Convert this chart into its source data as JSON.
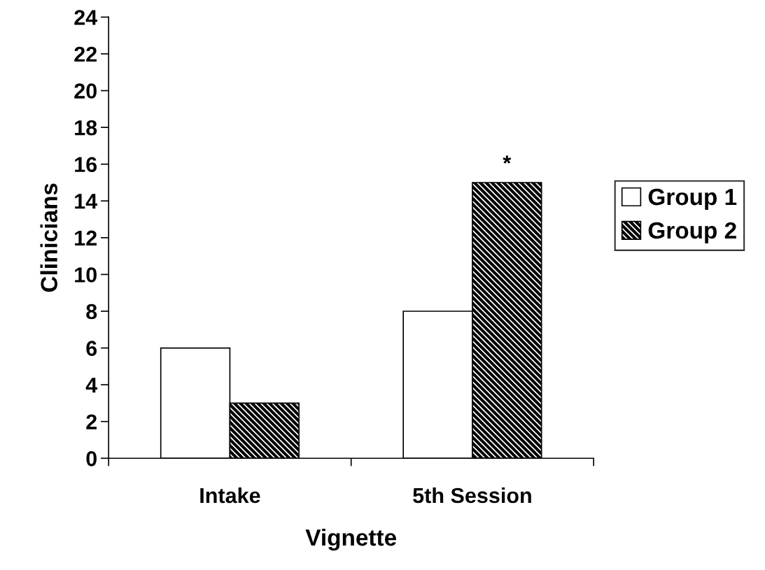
{
  "chart_data": {
    "type": "bar",
    "xlabel": "Vignette",
    "ylabel": "Clinicians",
    "categories": [
      "Intake",
      "5th Session"
    ],
    "series": [
      {
        "name": "Group 1",
        "color": "#ffffff",
        "values": [
          6,
          8
        ]
      },
      {
        "name": "Group 2",
        "color": "#000000",
        "values": [
          3,
          15
        ]
      }
    ],
    "ylim": [
      0,
      24
    ],
    "yticks": [
      0,
      2,
      4,
      6,
      8,
      10,
      12,
      14,
      16,
      18,
      20,
      22,
      24
    ],
    "annotations": [
      {
        "text": "*",
        "x": "5th Session",
        "y": 15
      }
    ],
    "legend": "right",
    "grid": false
  }
}
